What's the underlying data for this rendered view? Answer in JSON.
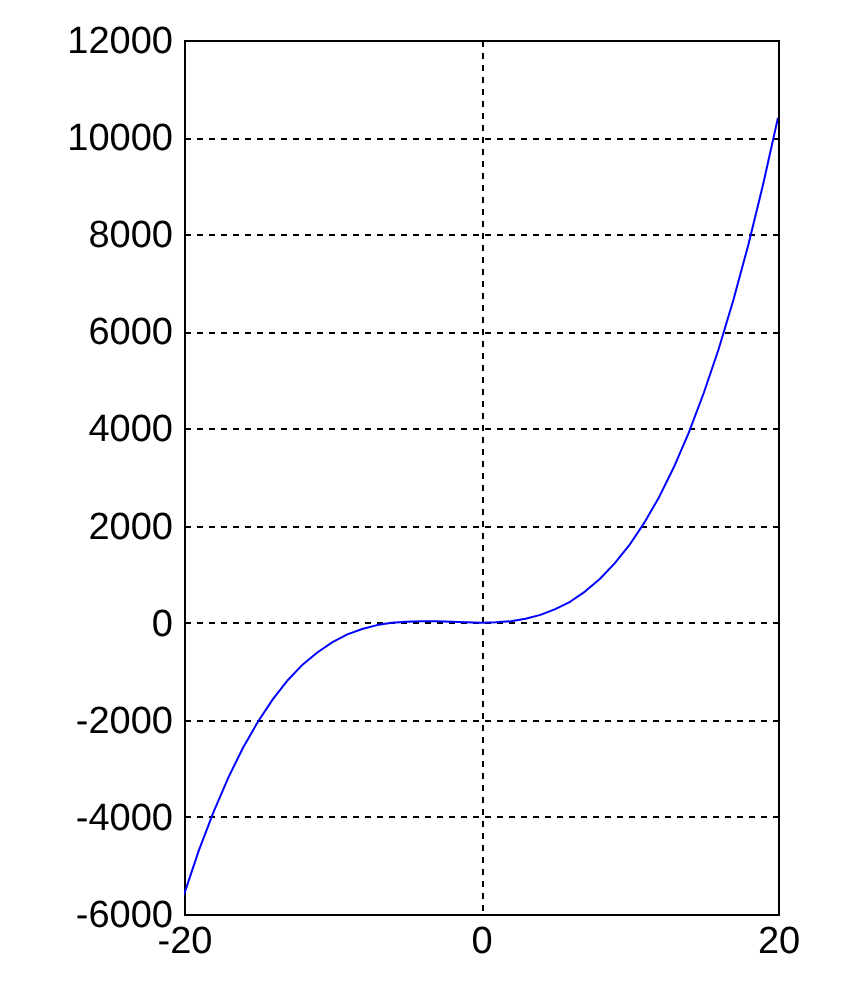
{
  "chart_data": {
    "type": "line",
    "x": [
      -20,
      -19,
      -18,
      -17,
      -16,
      -15,
      -14,
      -13,
      -12,
      -11,
      -10,
      -9,
      -8,
      -7,
      -6,
      -5,
      -4,
      -3,
      -2,
      -1,
      0,
      1,
      2,
      3,
      4,
      5,
      6,
      7,
      8,
      9,
      10,
      11,
      12,
      13,
      14,
      15,
      16,
      17,
      18,
      19,
      20
    ],
    "series": [
      {
        "color": "#0000ff",
        "values": [
          -5600,
          -4690,
          -3890,
          -3180,
          -2560,
          -2030,
          -1570,
          -1180,
          -860,
          -610,
          -400,
          -240,
          -130,
          -50,
          0,
          20,
          30,
          30,
          20,
          10,
          0,
          10,
          30,
          80,
          160,
          280,
          430,
          640,
          900,
          1220,
          1600,
          2060,
          2590,
          3210,
          3920,
          4730,
          5630,
          6650,
          7780,
          9030,
          10400
        ]
      }
    ],
    "xlim": [
      -20,
      20
    ],
    "xticks": [
      -20,
      0,
      20
    ],
    "ylim": [
      -6000,
      12000
    ],
    "yticks": [
      -6000,
      -4000,
      -2000,
      0,
      2000,
      4000,
      6000,
      8000,
      10000,
      12000
    ],
    "grid": true,
    "marker": "none",
    "line_style": "solid"
  }
}
